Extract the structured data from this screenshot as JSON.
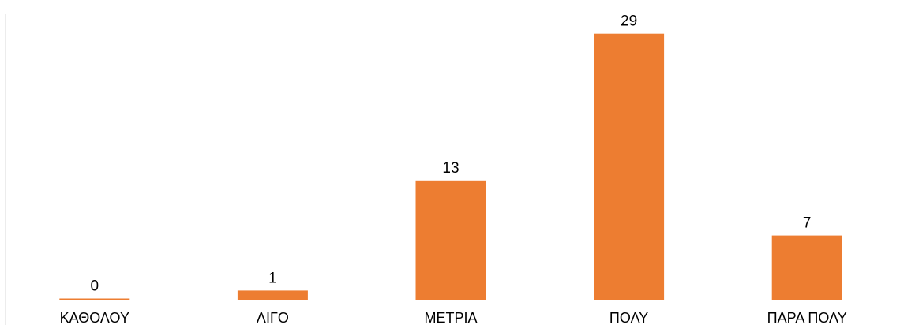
{
  "chart_data": {
    "type": "bar",
    "categories": [
      "ΚΑΘΟΛΟΥ",
      "ΛΙΓΟ",
      "ΜΕΤΡΙΑ",
      "ΠΟΛΥ",
      "ΠΑΡΑ ΠΟΛΥ"
    ],
    "values": [
      0,
      1,
      13,
      29,
      7
    ],
    "data_labels": [
      "0",
      "1",
      "13",
      "29",
      "7"
    ],
    "title": "",
    "xlabel": "",
    "ylabel": "",
    "ylim": [
      0,
      30
    ],
    "grid": false,
    "legend": "none",
    "bar_color": "#ED7D31",
    "axis_color": "#BFBFBF"
  }
}
